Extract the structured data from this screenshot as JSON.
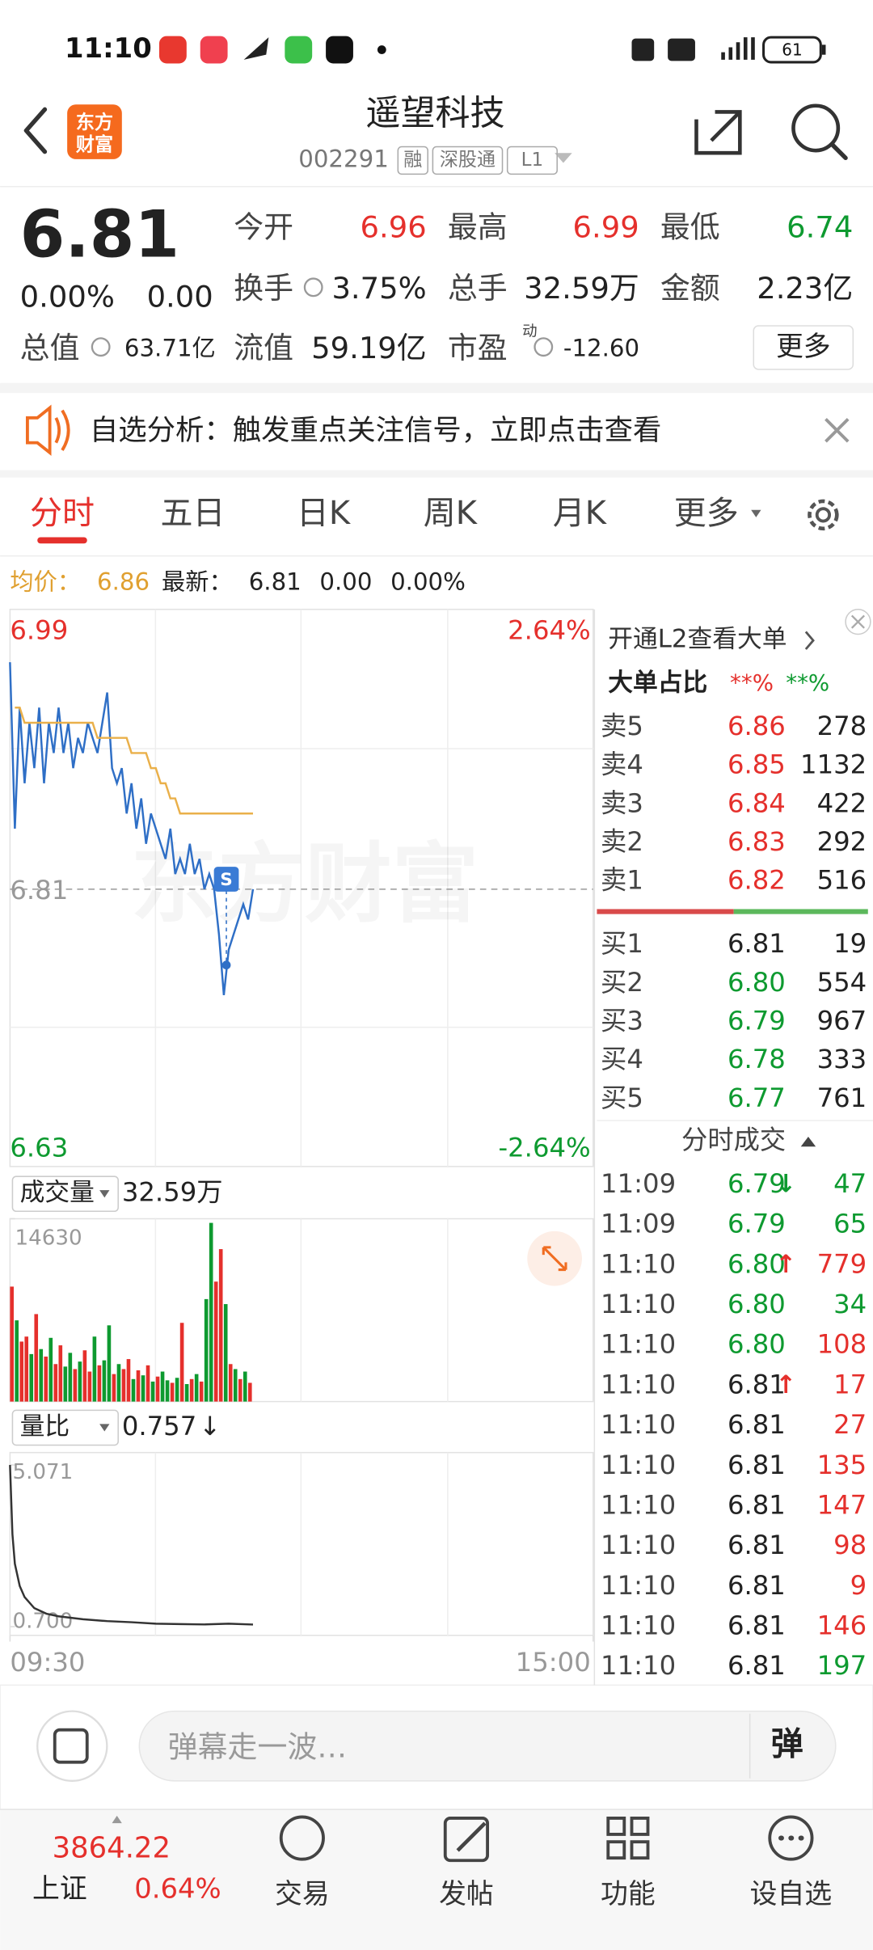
{
  "status": {
    "time": "11:10",
    "battery": "61"
  },
  "header": {
    "logo": [
      "东方",
      "财富"
    ],
    "title": "遥望科技",
    "code": "002291",
    "tags": [
      "融",
      "深股通",
      "L1"
    ]
  },
  "quote": {
    "price": "6.81",
    "change_pct": "0.00%",
    "change": "0.00",
    "stats": [
      {
        "label": "今开",
        "value": "6.96",
        "color": "#e5302c"
      },
      {
        "label": "最高",
        "value": "6.99",
        "color": "#e5302c"
      },
      {
        "label": "最低",
        "value": "6.74",
        "color": "#0e9a30"
      },
      {
        "label": "换手",
        "value": "3.75%"
      },
      {
        "label": "总手",
        "value": "32.59万"
      },
      {
        "label": "金额",
        "value": "2.23亿"
      },
      {
        "label": "总值",
        "value": "63.71亿"
      },
      {
        "label": "流值",
        "value": "59.19亿"
      },
      {
        "label": "市盈",
        "superscript": "动",
        "value": "-12.60"
      }
    ],
    "more": "更多"
  },
  "banner": {
    "text": "自选分析：触发重点关注信号，立即点击查看"
  },
  "tabs": {
    "items": [
      "分时",
      "五日",
      "日K",
      "周K",
      "月K",
      "更多"
    ],
    "active": 0
  },
  "summary": {
    "avg_label": "均价：",
    "avg": "6.86",
    "latest_label": "最新：",
    "latest": "6.81",
    "change": "0.00",
    "change_pct": "0.00%"
  },
  "chart_data": [
    {
      "type": "line",
      "watermark": "东方财富",
      "marker": "S",
      "xlim": [
        0,
        240
      ],
      "xticks": [
        {
          "value": 0,
          "label": "09:30"
        },
        {
          "value": 240,
          "label": "15:00"
        }
      ],
      "ylim": [
        6.63,
        6.99
      ],
      "yticks": [
        6.99,
        6.81,
        6.63
      ],
      "pct_labels": [
        "2.64%",
        "-2.64%"
      ],
      "x": [
        0,
        2,
        4,
        6,
        8,
        10,
        12,
        14,
        16,
        18,
        20,
        22,
        24,
        26,
        28,
        30,
        32,
        34,
        36,
        38,
        40,
        42,
        44,
        46,
        48,
        50,
        52,
        54,
        56,
        58,
        60,
        62,
        64,
        66,
        68,
        70,
        72,
        74,
        76,
        78,
        80,
        82,
        84,
        86,
        88,
        90,
        92,
        94,
        96,
        98,
        100
      ],
      "series": [
        {
          "color": "#2f6fc6",
          "values": [
            6.96,
            6.85,
            6.93,
            6.88,
            6.92,
            6.89,
            6.93,
            6.88,
            6.92,
            6.9,
            6.93,
            6.9,
            6.92,
            6.89,
            6.91,
            6.9,
            6.92,
            6.91,
            6.9,
            6.92,
            6.94,
            6.89,
            6.88,
            6.89,
            6.86,
            6.88,
            6.85,
            6.87,
            6.84,
            6.86,
            6.85,
            6.84,
            6.83,
            6.85,
            6.82,
            6.83,
            6.82,
            6.84,
            6.82,
            6.83,
            6.81,
            6.82,
            6.81,
            6.78,
            6.74,
            6.77,
            6.78,
            6.79,
            6.8,
            6.79,
            6.81
          ]
        },
        {
          "color": "#eab04a",
          "values": [
            null,
            6.93,
            6.93,
            6.92,
            6.92,
            6.92,
            6.92,
            6.92,
            6.92,
            6.92,
            6.92,
            6.92,
            6.92,
            6.92,
            6.92,
            6.92,
            6.92,
            6.92,
            6.91,
            6.91,
            6.91,
            6.91,
            6.91,
            6.91,
            6.91,
            6.9,
            6.9,
            6.9,
            6.9,
            6.89,
            6.89,
            6.88,
            6.88,
            6.87,
            6.87,
            6.86,
            6.86,
            6.86,
            6.86,
            6.86,
            6.86,
            6.86,
            6.86,
            6.86,
            6.86,
            6.86,
            6.86,
            6.86,
            6.86,
            6.86,
            6.86
          ]
        }
      ]
    },
    {
      "type": "bar",
      "label": "成交量",
      "total": "32.59万",
      "ylim": [
        0,
        14630
      ],
      "yticks": [
        14630
      ],
      "xlim": [
        0,
        240
      ],
      "x": [
        0,
        2,
        4,
        6,
        8,
        10,
        12,
        14,
        16,
        18,
        20,
        22,
        24,
        26,
        28,
        30,
        32,
        34,
        36,
        38,
        40,
        42,
        44,
        46,
        48,
        50,
        52,
        54,
        56,
        58,
        60,
        62,
        64,
        66,
        68,
        70,
        72,
        74,
        76,
        78,
        80,
        82,
        84,
        86,
        88,
        90,
        92,
        94,
        96,
        98
      ],
      "values": [
        9200,
        6500,
        4800,
        5200,
        3800,
        7000,
        4200,
        3600,
        5100,
        3000,
        4500,
        2800,
        3900,
        2600,
        3200,
        4100,
        2400,
        5200,
        2900,
        3300,
        6100,
        2200,
        3000,
        2600,
        3400,
        1800,
        2500,
        2100,
        2900,
        1600,
        2000,
        2400,
        1700,
        1500,
        1900,
        6300,
        1400,
        1800,
        2200,
        1600,
        8200,
        14300,
        9600,
        12200,
        7800,
        3000,
        2600,
        1800,
        2400,
        1500
      ],
      "up": [
        true,
        false,
        true,
        true,
        false,
        true,
        false,
        true,
        false,
        true,
        true,
        false,
        false,
        true,
        false,
        true,
        true,
        false,
        true,
        false,
        false,
        true,
        false,
        true,
        true,
        false,
        true,
        false,
        true,
        false,
        true,
        false,
        false,
        true,
        false,
        true,
        false,
        true,
        false,
        true,
        false,
        false,
        true,
        true,
        false,
        true,
        false,
        true,
        false,
        true
      ]
    },
    {
      "type": "line",
      "label": "量比",
      "value": "0.757",
      "arrow": "↓",
      "ylim": [
        0.7,
        5.071
      ],
      "yticks": [
        5.071,
        {
          "value": 0.7,
          "label": "0.700"
        }
      ],
      "xlim": [
        0,
        240
      ],
      "x": [
        0,
        1,
        2,
        4,
        6,
        10,
        15,
        20,
        30,
        40,
        50,
        60,
        70,
        80,
        90,
        100
      ],
      "values": [
        5.071,
        3.2,
        2.4,
        1.8,
        1.5,
        1.2,
        1.05,
        0.98,
        0.9,
        0.85,
        0.82,
        0.78,
        0.77,
        0.76,
        0.78,
        0.757
      ]
    }
  ],
  "order_book": {
    "l2_link": "开通L2查看大单",
    "big_order_label": "大单占比",
    "big_order_buy": "**%",
    "big_order_sell": "**%",
    "asks": [
      {
        "label": "卖5",
        "price": "6.86",
        "volume": "278"
      },
      {
        "label": "卖4",
        "price": "6.85",
        "volume": "1132"
      },
      {
        "label": "卖3",
        "price": "6.84",
        "volume": "422"
      },
      {
        "label": "卖2",
        "price": "6.83",
        "volume": "292"
      },
      {
        "label": "卖1",
        "price": "6.82",
        "volume": "516"
      }
    ],
    "bids": [
      {
        "label": "买1",
        "price": "6.81",
        "volume": "19"
      },
      {
        "label": "买2",
        "price": "6.80",
        "volume": "554"
      },
      {
        "label": "买3",
        "price": "6.79",
        "volume": "967"
      },
      {
        "label": "买4",
        "price": "6.78",
        "volume": "333"
      },
      {
        "label": "买5",
        "price": "6.77",
        "volume": "761"
      }
    ]
  },
  "trades": {
    "title": "分时成交",
    "rows": [
      {
        "time": "11:09",
        "price": "6.79",
        "arrow": "↓",
        "volume": "47",
        "price_color": "#0e9a30",
        "volume_color": "#0e9a30"
      },
      {
        "time": "11:09",
        "price": "6.79",
        "volume": "65",
        "price_color": "#0e9a30",
        "volume_color": "#0e9a30"
      },
      {
        "time": "11:10",
        "price": "6.80",
        "arrow": "↑",
        "volume": "779",
        "price_color": "#0e9a30",
        "volume_color": "#e5302c"
      },
      {
        "time": "11:10",
        "price": "6.80",
        "volume": "34",
        "price_color": "#0e9a30",
        "volume_color": "#0e9a30"
      },
      {
        "time": "11:10",
        "price": "6.80",
        "volume": "108",
        "price_color": "#0e9a30",
        "volume_color": "#e5302c"
      },
      {
        "time": "11:10",
        "price": "6.81",
        "arrow": "↑",
        "volume": "17",
        "price_color": "#222222",
        "volume_color": "#e5302c"
      },
      {
        "time": "11:10",
        "price": "6.81",
        "volume": "27",
        "price_color": "#222222",
        "volume_color": "#e5302c"
      },
      {
        "time": "11:10",
        "price": "6.81",
        "volume": "135",
        "price_color": "#222222",
        "volume_color": "#e5302c"
      },
      {
        "time": "11:10",
        "price": "6.81",
        "volume": "147",
        "price_color": "#222222",
        "volume_color": "#e5302c"
      },
      {
        "time": "11:10",
        "price": "6.81",
        "volume": "98",
        "price_color": "#222222",
        "volume_color": "#e5302c"
      },
      {
        "time": "11:10",
        "price": "6.81",
        "volume": "9",
        "price_color": "#222222",
        "volume_color": "#e5302c"
      },
      {
        "time": "11:10",
        "price": "6.81",
        "volume": "146",
        "price_color": "#222222",
        "volume_color": "#e5302c"
      },
      {
        "time": "11:10",
        "price": "6.81",
        "volume": "197",
        "price_color": "#222222",
        "volume_color": "#0e9a30"
      }
    ]
  },
  "comment": {
    "placeholder": "弹幕走一波…",
    "button": "弹"
  },
  "footer": {
    "index_value": "3864.22",
    "index_name": "上证",
    "index_pct": "0.64%",
    "nav": [
      "交易",
      "发帖",
      "功能",
      "设自选"
    ]
  }
}
